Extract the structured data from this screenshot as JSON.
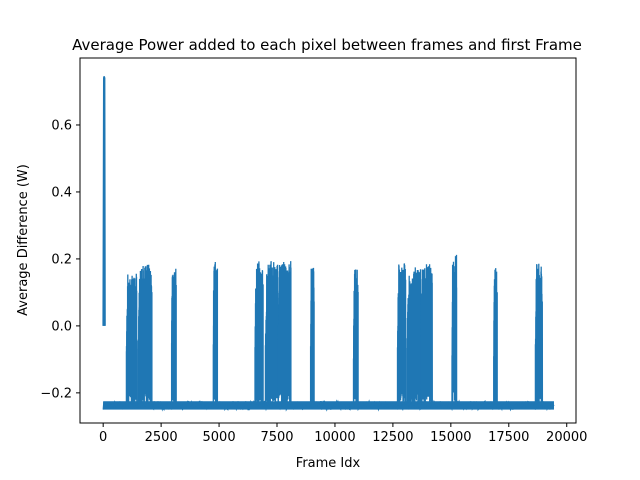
{
  "chart_data": {
    "type": "line",
    "title": "Average Power added to each pixel between frames and first Frame",
    "xlabel": "Frame Idx",
    "ylabel": "Average Difference (W)",
    "xlim": [
      -1000,
      20400
    ],
    "ylim": [
      -0.29,
      0.8
    ],
    "xticks": [
      0,
      2500,
      5000,
      7500,
      10000,
      12500,
      15000,
      17500,
      20000
    ],
    "xtick_labels": [
      "0",
      "2500",
      "5000",
      "7500",
      "10000",
      "12500",
      "15000",
      "17500",
      "20000"
    ],
    "yticks": [
      -0.2,
      0.0,
      0.2,
      0.4,
      0.6
    ],
    "ytick_labels": [
      "−0.2",
      "0.0",
      "0.2",
      "0.4",
      "0.6"
    ],
    "grid": false,
    "line_color": "#1f77b4",
    "series": [
      {
        "baseline": -0.235,
        "baseline_band": [
          -0.25,
          -0.225
        ],
        "x_range": [
          0,
          19450
        ],
        "initial_spike": {
          "x": [
            0,
            25,
            40,
            60,
            80
          ],
          "y": [
            0.0,
            0.74,
            0.745,
            0.74,
            0.0
          ]
        },
        "bursts": [
          {
            "x_start": 1000,
            "x_end": 1450,
            "peak": 0.16
          },
          {
            "x_start": 1500,
            "x_end": 2100,
            "peak": 0.185
          },
          {
            "x_start": 2950,
            "x_end": 3150,
            "peak": 0.175
          },
          {
            "x_start": 4750,
            "x_end": 4930,
            "peak": 0.2
          },
          {
            "x_start": 6550,
            "x_end": 6900,
            "peak": 0.195
          },
          {
            "x_start": 7000,
            "x_end": 7550,
            "peak": 0.195
          },
          {
            "x_start": 7550,
            "x_end": 8100,
            "peak": 0.195
          },
          {
            "x_start": 8950,
            "x_end": 9100,
            "peak": 0.18
          },
          {
            "x_start": 10800,
            "x_end": 11000,
            "peak": 0.17
          },
          {
            "x_start": 12700,
            "x_end": 13050,
            "peak": 0.19
          },
          {
            "x_start": 13100,
            "x_end": 13700,
            "peak": 0.175
          },
          {
            "x_start": 13700,
            "x_end": 14200,
            "peak": 0.185
          },
          {
            "x_start": 15050,
            "x_end": 15250,
            "peak": 0.215
          },
          {
            "x_start": 16850,
            "x_end": 17000,
            "peak": 0.175
          },
          {
            "x_start": 18650,
            "x_end": 18950,
            "peak": 0.19
          }
        ]
      }
    ]
  }
}
